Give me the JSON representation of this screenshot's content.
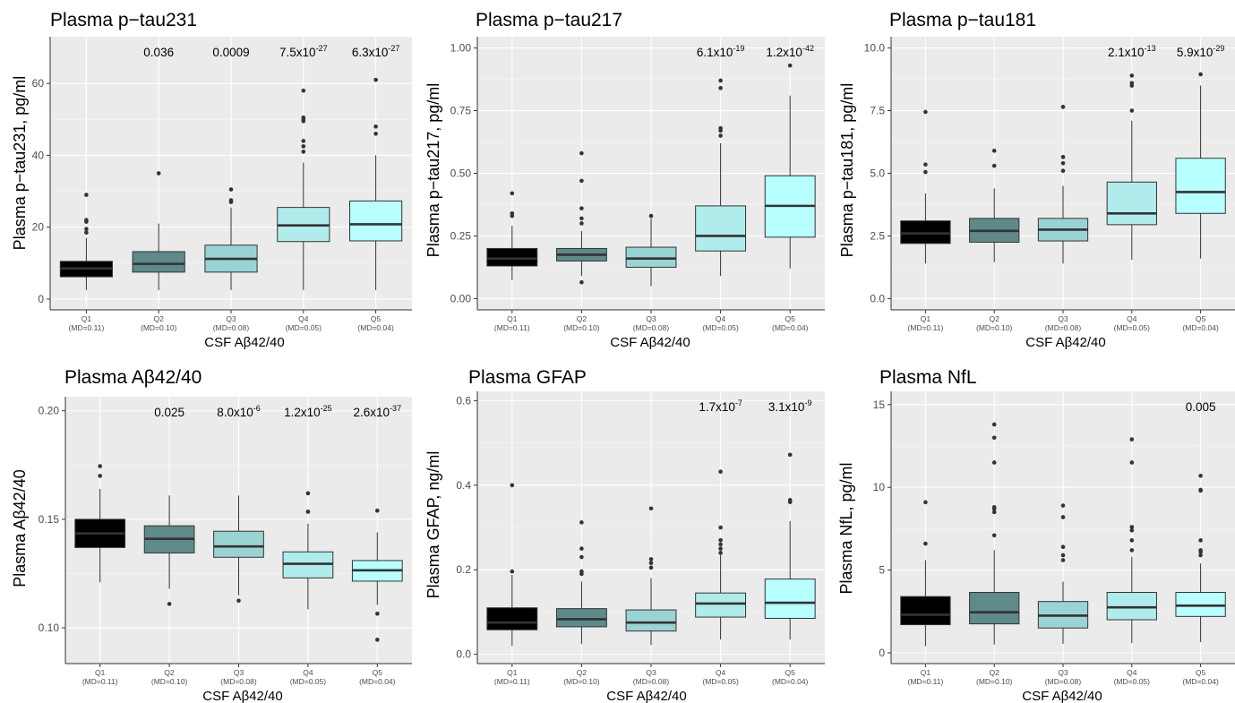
{
  "chart_data": [
    {
      "type": "box",
      "title": "Plasma p−tau231",
      "ylabel": "Plasma p−tau231, pg/ml",
      "xlabel": "CSF Aβ42/40",
      "ylim": [
        -3,
        73
      ],
      "yticks": [
        0,
        20,
        40,
        60
      ],
      "ytick_labels": [
        "0",
        "20",
        "40",
        "60"
      ],
      "categories": [
        "Q1",
        "Q2",
        "Q3",
        "Q4",
        "Q5"
      ],
      "category_sublabels": [
        "(MD=0.11)",
        "(MD=0.10)",
        "(MD=0.08)",
        "(MD=0.05)",
        "(MD=0.04)"
      ],
      "colors": [
        "#000000",
        "#5e8a8a",
        "#9ad3d3",
        "#b0ecec",
        "#b8ffff"
      ],
      "pvalues": [
        null,
        {
          "base": "0.036"
        },
        {
          "base": "0.0009"
        },
        {
          "base": "7.5x10",
          "exp": "-27"
        },
        {
          "base": "6.3x10",
          "exp": "-27"
        }
      ],
      "boxes": [
        {
          "min": 2.5,
          "q1": 6.2,
          "median": 8.5,
          "q3": 10.5,
          "max": 17,
          "outliers": [
            18.5,
            19.5,
            21.5,
            22,
            29
          ]
        },
        {
          "min": 2.5,
          "q1": 7.5,
          "median": 9.8,
          "q3": 13.2,
          "max": 21,
          "outliers": [
            35
          ]
        },
        {
          "min": 2.5,
          "q1": 7.5,
          "median": 11.2,
          "q3": 15,
          "max": 25.5,
          "outliers": [
            27,
            27.5,
            30.5
          ]
        },
        {
          "min": 2.5,
          "q1": 16,
          "median": 20.5,
          "q3": 25.5,
          "max": 38,
          "outliers": [
            41,
            42.5,
            44,
            49.5,
            50,
            50.5,
            58
          ]
        },
        {
          "min": 2.5,
          "q1": 16.2,
          "median": 20.8,
          "q3": 27.3,
          "max": 40,
          "outliers": [
            46,
            48,
            61
          ]
        }
      ]
    },
    {
      "type": "box",
      "title": "Plasma p−tau217",
      "ylabel": "Plasma p−tau217, pg/ml",
      "xlabel": "CSF Aβ42/40",
      "ylim": [
        -0.045,
        1.045
      ],
      "yticks": [
        0,
        0.25,
        0.5,
        0.75,
        1.0
      ],
      "ytick_labels": [
        "0.00",
        "0.25",
        "0.50",
        "0.75",
        "1.00"
      ],
      "categories": [
        "Q1",
        "Q2",
        "Q3",
        "Q4",
        "Q5"
      ],
      "category_sublabels": [
        "(MD=0.11)",
        "(MD=0.10)",
        "(MD=0.08)",
        "(MD=0.05)",
        "(MD=0.04)"
      ],
      "colors": [
        "#000000",
        "#5e8a8a",
        "#9ad3d3",
        "#b0ecec",
        "#b8ffff"
      ],
      "pvalues": [
        null,
        null,
        null,
        {
          "base": "6.1x10",
          "exp": "-19"
        },
        {
          "base": "1.2x10",
          "exp": "-42"
        }
      ],
      "boxes": [
        {
          "min": 0.075,
          "q1": 0.13,
          "median": 0.16,
          "q3": 0.2,
          "max": 0.29,
          "outliers": [
            0.33,
            0.34,
            0.42
          ]
        },
        {
          "min": 0.09,
          "q1": 0.15,
          "median": 0.175,
          "q3": 0.2,
          "max": 0.27,
          "outliers": [
            0.065,
            0.3,
            0.32,
            0.36,
            0.47,
            0.58
          ]
        },
        {
          "min": 0.05,
          "q1": 0.125,
          "median": 0.16,
          "q3": 0.205,
          "max": 0.32,
          "outliers": [
            0.33
          ]
        },
        {
          "min": 0.09,
          "q1": 0.19,
          "median": 0.25,
          "q3": 0.37,
          "max": 0.62,
          "outliers": [
            0.65,
            0.67,
            0.68,
            0.84,
            0.87
          ]
        },
        {
          "min": 0.12,
          "q1": 0.245,
          "median": 0.37,
          "q3": 0.49,
          "max": 0.81,
          "outliers": [
            0.93
          ]
        }
      ]
    },
    {
      "type": "box",
      "title": "Plasma p−tau181",
      "ylabel": "Plasma p−tau181, pg/ml",
      "xlabel": "CSF Aβ42/40",
      "ylim": [
        -0.45,
        10.45
      ],
      "yticks": [
        0,
        2.5,
        5.0,
        7.5,
        10.0
      ],
      "ytick_labels": [
        "0.0",
        "2.5",
        "5.0",
        "7.5",
        "10.0"
      ],
      "categories": [
        "Q1",
        "Q2",
        "Q3",
        "Q4",
        "Q5"
      ],
      "category_sublabels": [
        "(MD=0.11)",
        "(MD=0.10)",
        "(MD=0.08)",
        "(MD=0.05)",
        "(MD=0.04)"
      ],
      "colors": [
        "#000000",
        "#5e8a8a",
        "#9ad3d3",
        "#b0ecec",
        "#b8ffff"
      ],
      "pvalues": [
        null,
        null,
        null,
        {
          "base": "2.1x10",
          "exp": "-13"
        },
        {
          "base": "5.9x10",
          "exp": "-29"
        }
      ],
      "boxes": [
        {
          "min": 1.4,
          "q1": 2.2,
          "median": 2.6,
          "q3": 3.1,
          "max": 4.2,
          "outliers": [
            5.05,
            5.35,
            7.45
          ]
        },
        {
          "min": 1.45,
          "q1": 2.25,
          "median": 2.7,
          "q3": 3.2,
          "max": 4.4,
          "outliers": [
            5.3,
            5.9
          ]
        },
        {
          "min": 1.4,
          "q1": 2.3,
          "median": 2.75,
          "q3": 3.2,
          "max": 4.5,
          "outliers": [
            5.1,
            5.4,
            5.65,
            7.65
          ]
        },
        {
          "min": 1.55,
          "q1": 2.95,
          "median": 3.4,
          "q3": 4.65,
          "max": 7.1,
          "outliers": [
            7.5,
            8.5,
            8.6,
            8.9
          ]
        },
        {
          "min": 1.6,
          "q1": 3.4,
          "median": 4.25,
          "q3": 5.6,
          "max": 8.5,
          "outliers": [
            8.95
          ]
        }
      ]
    },
    {
      "type": "box",
      "title": "Plasma Aβ42/40",
      "ylabel": "Plasma Aβ42/40",
      "xlabel": "CSF Aβ42/40",
      "ylim": [
        0.0835,
        0.2065
      ],
      "yticks": [
        0.1,
        0.15,
        0.2
      ],
      "ytick_labels": [
        "0.10",
        "0.15",
        "0.20"
      ],
      "categories": [
        "Q1",
        "Q2",
        "Q3",
        "Q4",
        "Q5"
      ],
      "category_sublabels": [
        "(MD=0.11)",
        "(MD=0.10)",
        "(MD=0.08)",
        "(MD=0.05)",
        "(MD=0.04)"
      ],
      "colors": [
        "#000000",
        "#5e8a8a",
        "#9ad3d3",
        "#b0ecec",
        "#b8ffff"
      ],
      "pvalues": [
        null,
        {
          "base": "0.025"
        },
        {
          "base": "8.0x10",
          "exp": "-6"
        },
        {
          "base": "1.2x10",
          "exp": "-25"
        },
        {
          "base": "2.6x10",
          "exp": "-37"
        }
      ],
      "boxes": [
        {
          "min": 0.121,
          "q1": 0.137,
          "median": 0.1435,
          "q3": 0.15,
          "max": 0.164,
          "outliers": [
            0.17,
            0.1745
          ]
        },
        {
          "min": 0.118,
          "q1": 0.1345,
          "median": 0.141,
          "q3": 0.147,
          "max": 0.161,
          "outliers": [
            0.111
          ]
        },
        {
          "min": 0.115,
          "q1": 0.1325,
          "median": 0.1375,
          "q3": 0.1445,
          "max": 0.161,
          "outliers": [
            0.1125
          ]
        },
        {
          "min": 0.1085,
          "q1": 0.123,
          "median": 0.1295,
          "q3": 0.135,
          "max": 0.148,
          "outliers": [
            0.1535,
            0.1535,
            0.162
          ]
        },
        {
          "min": 0.1105,
          "q1": 0.1215,
          "median": 0.1265,
          "q3": 0.131,
          "max": 0.144,
          "outliers": [
            0.0945,
            0.1065,
            0.154
          ]
        }
      ]
    },
    {
      "type": "box",
      "title": "Plasma GFAP",
      "ylabel": "Plasma GFAP, ng/ml",
      "xlabel": "CSF Aβ42/40",
      "ylim": [
        -0.022,
        0.622
      ],
      "yticks": [
        0,
        0.2,
        0.4,
        0.6
      ],
      "ytick_labels": [
        "0.0",
        "0.2",
        "0.4",
        "0.6"
      ],
      "categories": [
        "Q1",
        "Q2",
        "Q3",
        "Q4",
        "Q5"
      ],
      "category_sublabels": [
        "(MD=0.11)",
        "(MD=0.10)",
        "(MD=0.08)",
        "(MD=0.05)",
        "(MD=0.04)"
      ],
      "colors": [
        "#000000",
        "#5e8a8a",
        "#9ad3d3",
        "#b0ecec",
        "#b8ffff"
      ],
      "pvalues": [
        null,
        null,
        null,
        {
          "base": "1.7x10",
          "exp": "-7"
        },
        {
          "base": "3.1x10",
          "exp": "-9"
        }
      ],
      "boxes": [
        {
          "min": 0.02,
          "q1": 0.058,
          "median": 0.075,
          "q3": 0.11,
          "max": 0.188,
          "outliers": [
            0.196,
            0.4
          ]
        },
        {
          "min": 0.025,
          "q1": 0.065,
          "median": 0.083,
          "q3": 0.108,
          "max": 0.172,
          "outliers": [
            0.19,
            0.196,
            0.23,
            0.25,
            0.312
          ]
        },
        {
          "min": 0.022,
          "q1": 0.055,
          "median": 0.075,
          "q3": 0.105,
          "max": 0.18,
          "outliers": [
            0.205,
            0.216,
            0.225,
            0.345
          ]
        },
        {
          "min": 0.035,
          "q1": 0.088,
          "median": 0.12,
          "q3": 0.145,
          "max": 0.235,
          "outliers": [
            0.24,
            0.25,
            0.26,
            0.27,
            0.3,
            0.432
          ]
        },
        {
          "min": 0.035,
          "q1": 0.085,
          "median": 0.122,
          "q3": 0.178,
          "max": 0.315,
          "outliers": [
            0.36,
            0.365,
            0.472
          ]
        }
      ]
    },
    {
      "type": "box",
      "title": "Plasma NfL",
      "ylabel": "Plasma NfL, pg/ml",
      "xlabel": "CSF Aβ42/40",
      "ylim": [
        -0.65,
        15.8
      ],
      "yticks": [
        0,
        5,
        10,
        15
      ],
      "ytick_labels": [
        "0",
        "5",
        "10",
        "15"
      ],
      "categories": [
        "Q1",
        "Q2",
        "Q3",
        "Q4",
        "Q5"
      ],
      "category_sublabels": [
        "(MD=0.11)",
        "(MD=0.10)",
        "(MD=0.08)",
        "(MD=0.05)",
        "(MD=0.04)"
      ],
      "colors": [
        "#000000",
        "#5e8a8a",
        "#9ad3d3",
        "#b0ecec",
        "#b8ffff"
      ],
      "pvalues": [
        null,
        null,
        null,
        null,
        {
          "base": "0.005"
        }
      ],
      "boxes": [
        {
          "min": 0.4,
          "q1": 1.7,
          "median": 2.3,
          "q3": 3.4,
          "max": 5.6,
          "outliers": [
            6.6,
            9.1
          ]
        },
        {
          "min": 0.5,
          "q1": 1.75,
          "median": 2.45,
          "q3": 3.65,
          "max": 6.2,
          "outliers": [
            7.1,
            8.5,
            8.7,
            8.8,
            11.5,
            13.0,
            13.8
          ]
        },
        {
          "min": 0.55,
          "q1": 1.5,
          "median": 2.25,
          "q3": 3.1,
          "max": 4.3,
          "outliers": [
            5.6,
            5.9,
            6.4,
            8.2,
            8.9
          ]
        },
        {
          "min": 0.6,
          "q1": 2.0,
          "median": 2.75,
          "q3": 3.65,
          "max": 5.8,
          "outliers": [
            6.2,
            6.8,
            7.4,
            7.6,
            11.5,
            12.9
          ]
        },
        {
          "min": 0.65,
          "q1": 2.2,
          "median": 2.85,
          "q3": 3.65,
          "max": 5.4,
          "outliers": [
            5.9,
            6.1,
            6.2,
            6.8,
            9.8,
            9.85,
            10.7
          ]
        }
      ]
    }
  ]
}
